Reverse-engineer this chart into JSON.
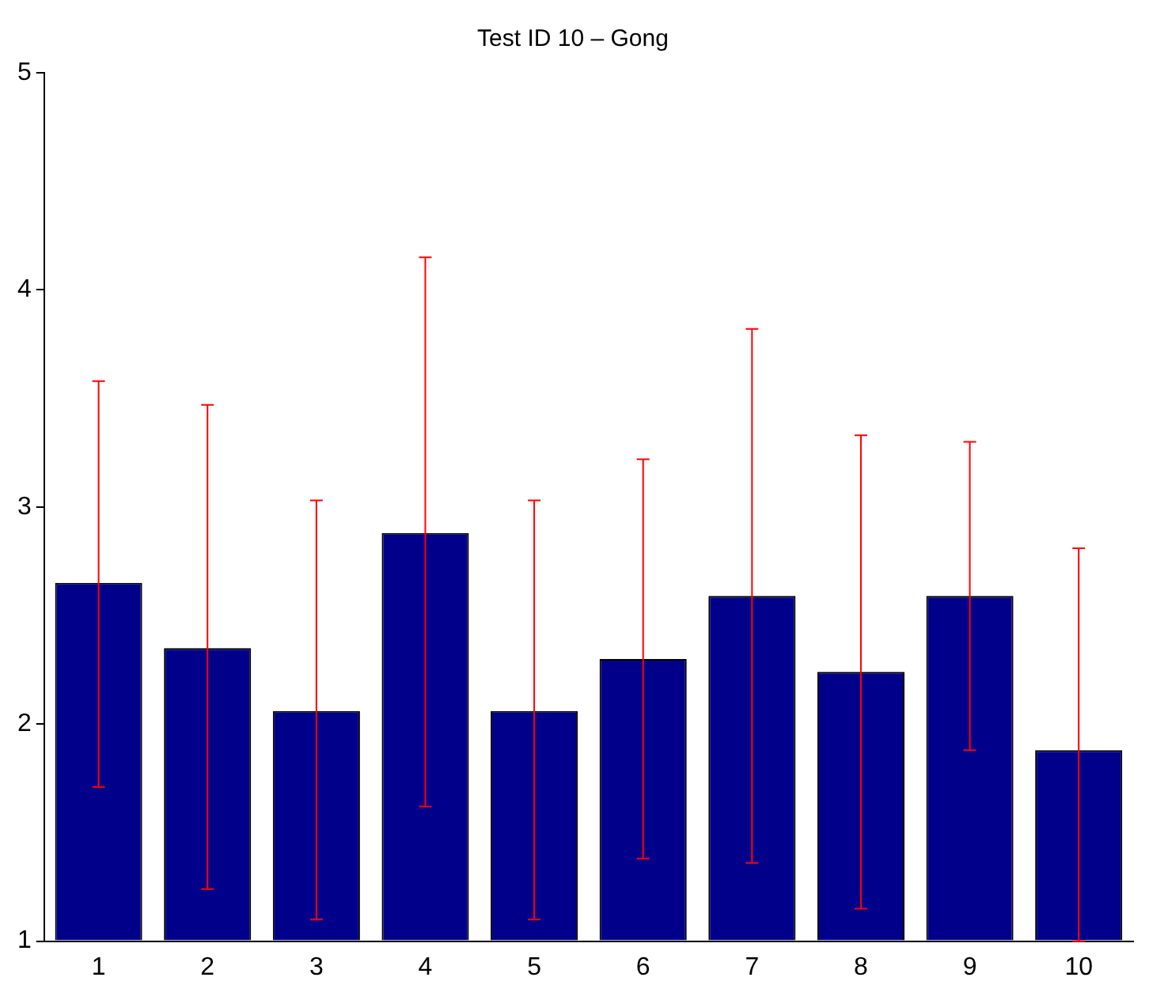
{
  "chart_data": {
    "type": "bar",
    "title": "Test ID 10 – Gong",
    "categories": [
      "1",
      "2",
      "3",
      "4",
      "5",
      "6",
      "7",
      "8",
      "9",
      "10"
    ],
    "values": [
      2.65,
      2.35,
      2.06,
      2.88,
      2.06,
      2.3,
      2.59,
      2.24,
      2.59,
      1.88
    ],
    "color": "#00008b",
    "errors": [
      [
        1.71,
        3.58
      ],
      [
        1.24,
        3.47
      ],
      [
        1.1,
        3.03
      ],
      [
        1.62,
        4.15
      ],
      [
        1.1,
        3.03
      ],
      [
        1.38,
        3.22
      ],
      [
        1.36,
        3.82
      ],
      [
        1.15,
        3.33
      ],
      [
        1.88,
        3.3
      ],
      [
        1,
        2.81
      ]
    ],
    "ylim": [
      1,
      5
    ],
    "yticks": [
      1,
      2,
      3,
      4,
      5
    ],
    "grid": false,
    "legend": false
  }
}
